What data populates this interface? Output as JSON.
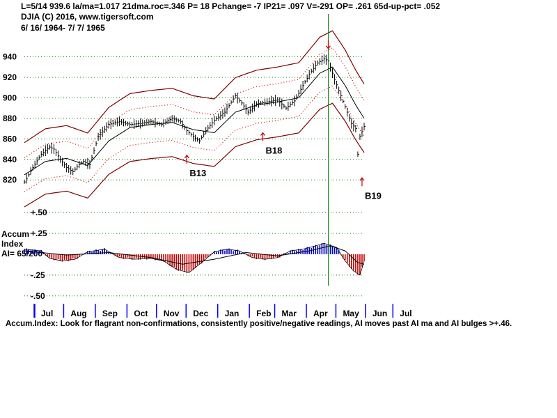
{
  "header": {
    "line1": "L=5/14   939.6  la/ma=1.017 21dma.roc=.346 P=   18 Pchange= -7 IP21= .097 V=-291 OP= .261 65d-up-pct= .052",
    "line2": "DJIA   (C) 2016, www.tigersoft.com",
    "line3": "6/ 16/ 1964- 7/ 7/ 1965"
  },
  "panel_labels": {
    "accum": "Accum",
    "index": "Index",
    "ai_value": "AI= 65/200"
  },
  "footer": {
    "note": "Accum.Index: Look for flagrant non-confirmations, consistently positive/negative readings, AI moves past AI ma and AI bulges >+.46."
  },
  "colors": {
    "band": "#800000",
    "band_inner": "#d00000",
    "gridline": "#008000",
    "price": "#000000",
    "accum_positive": "#0000c0",
    "accum_negative": "#c00000",
    "signal": "#c00000",
    "month_tick": "#0000ff",
    "vline": "#008000"
  },
  "chart_data": [
    {
      "type": "line",
      "title": "DJIA",
      "x_range": [
        "1964-06-16",
        "1965-07-07"
      ],
      "y_ticks": [
        820,
        840,
        860,
        880,
        900,
        920,
        940
      ],
      "ylim": [
        812,
        958
      ],
      "series": [
        {
          "name": "DJIA close (approx)",
          "points": [
            [
              0,
              818
            ],
            [
              4,
              832
            ],
            [
              8,
              845
            ],
            [
              12,
              852
            ],
            [
              14,
              850
            ],
            [
              17,
              840
            ],
            [
              20,
              832
            ],
            [
              23,
              828
            ],
            [
              26,
              835
            ],
            [
              28,
              838
            ],
            [
              31,
              835
            ],
            [
              35,
              862
            ],
            [
              40,
              874
            ],
            [
              45,
              877
            ],
            [
              50,
              874
            ],
            [
              55,
              875
            ],
            [
              60,
              877
            ],
            [
              65,
              874
            ],
            [
              70,
              880
            ],
            [
              74,
              877
            ],
            [
              77,
              868
            ],
            [
              80,
              862
            ],
            [
              83,
              858
            ],
            [
              86,
              868
            ],
            [
              90,
              878
            ],
            [
              95,
              886
            ],
            [
              100,
              902
            ],
            [
              103,
              895
            ],
            [
              106,
              886
            ],
            [
              110,
              894
            ],
            [
              115,
              896
            ],
            [
              120,
              898
            ],
            [
              124,
              890
            ],
            [
              128,
              897
            ],
            [
              132,
              912
            ],
            [
              136,
              926
            ],
            [
              139,
              934
            ],
            [
              142,
              938
            ],
            [
              144,
              936
            ],
            [
              147,
              918
            ],
            [
              150,
              902
            ],
            [
              153,
              886
            ],
            [
              155,
              875
            ],
            [
              157,
              870
            ],
            [
              158,
              845
            ],
            [
              159,
              862
            ],
            [
              161,
              872
            ]
          ]
        },
        {
          "name": "21-day moving average (approx)",
          "points": [
            [
              0,
              825
            ],
            [
              10,
              838
            ],
            [
              20,
              841
            ],
            [
              30,
              834
            ],
            [
              40,
              858
            ],
            [
              50,
              871
            ],
            [
              60,
              874
            ],
            [
              70,
              876
            ],
            [
              80,
              869
            ],
            [
              90,
              866
            ],
            [
              100,
              886
            ],
            [
              110,
              893
            ],
            [
              120,
              896
            ],
            [
              130,
              900
            ],
            [
              140,
              924
            ],
            [
              146,
              930
            ],
            [
              152,
              912
            ],
            [
              157,
              893
            ],
            [
              161,
              880
            ]
          ]
        }
      ],
      "band_upper_outer_offset_pct": 3.8,
      "band_upper_inner_offset_pct": 2.0,
      "band_lower_inner_offset_pct": -2.0,
      "band_lower_outer_offset_pct": -3.8,
      "annotations": [
        {
          "label": "B13",
          "x": 77,
          "value": 844
        },
        {
          "label": "B18",
          "x": 113,
          "value": 866
        },
        {
          "label": "B19",
          "x": 160,
          "value": 822
        },
        {
          "label": "sell",
          "x": 144,
          "value": 948
        }
      ],
      "vertical_marker_x": 144
    },
    {
      "type": "bar",
      "title": "Accum Index",
      "y_ticks": [
        {
          "value": 0.5,
          "label": "+.50"
        },
        {
          "value": 0.25,
          "label": "+.25"
        },
        {
          "value": -0.25,
          "label": "-.25"
        },
        {
          "value": -0.5,
          "label": "-.50"
        }
      ],
      "ylim": [
        -0.56,
        0.6
      ],
      "values_keypoints": [
        [
          0,
          0.06
        ],
        [
          8,
          0.04
        ],
        [
          12,
          -0.05
        ],
        [
          18,
          -0.08
        ],
        [
          24,
          -0.06
        ],
        [
          30,
          0.03
        ],
        [
          38,
          0.06
        ],
        [
          45,
          -0.04
        ],
        [
          52,
          -0.06
        ],
        [
          60,
          -0.05
        ],
        [
          66,
          -0.08
        ],
        [
          72,
          -0.18
        ],
        [
          78,
          -0.22
        ],
        [
          84,
          -0.1
        ],
        [
          90,
          0.03
        ],
        [
          96,
          0.06
        ],
        [
          102,
          0.04
        ],
        [
          108,
          -0.04
        ],
        [
          114,
          -0.06
        ],
        [
          120,
          -0.04
        ],
        [
          126,
          0.04
        ],
        [
          132,
          0.06
        ],
        [
          138,
          0.1
        ],
        [
          142,
          0.13
        ],
        [
          148,
          0.08
        ],
        [
          152,
          -0.08
        ],
        [
          156,
          -0.2
        ],
        [
          159,
          -0.25
        ],
        [
          161,
          -0.08
        ]
      ],
      "ma_keypoints": [
        [
          0,
          0.04
        ],
        [
          20,
          -0.01
        ],
        [
          40,
          0.02
        ],
        [
          60,
          -0.04
        ],
        [
          75,
          -0.12
        ],
        [
          90,
          -0.06
        ],
        [
          105,
          0.02
        ],
        [
          120,
          -0.02
        ],
        [
          135,
          0.04
        ],
        [
          145,
          0.1
        ],
        [
          152,
          0.04
        ],
        [
          158,
          -0.1
        ],
        [
          161,
          -0.12
        ]
      ]
    }
  ],
  "x_axis": {
    "months": [
      "Jul",
      "Aug",
      "Sep",
      "Oct",
      "Nov",
      "Dec",
      "Jan",
      "Feb",
      "Mar",
      "Apr",
      "May",
      "Jun",
      "Jul"
    ],
    "month_start_x": [
      0,
      14,
      29,
      44,
      58,
      72,
      87,
      102,
      114,
      129,
      143,
      157,
      170
    ],
    "n_points": 162
  }
}
